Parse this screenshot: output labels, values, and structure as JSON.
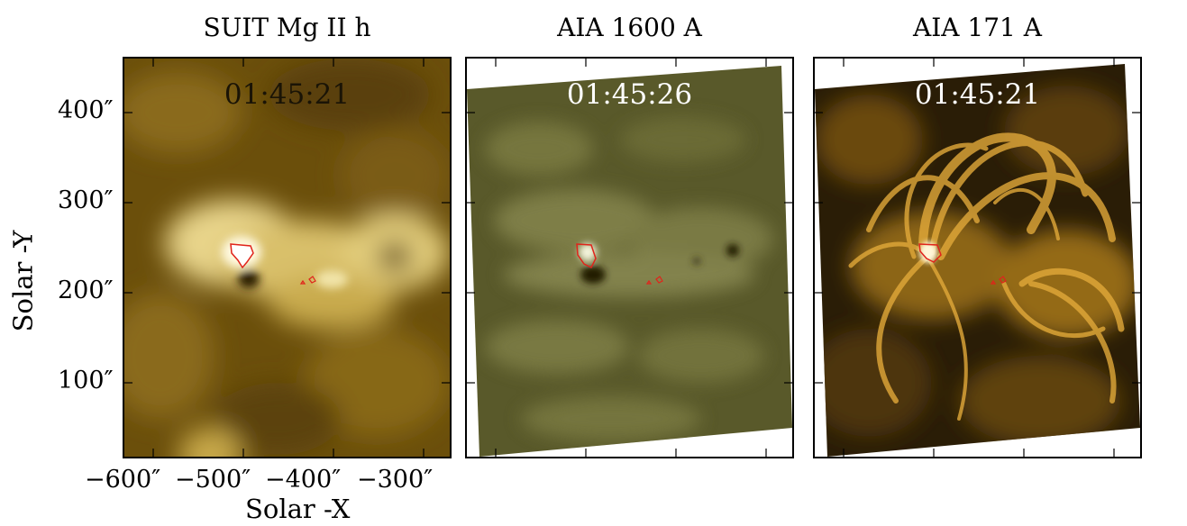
{
  "figure": {
    "panels": [
      {
        "title": "SUIT Mg II h",
        "time": "01:45:21",
        "colormap": "mg2-brown-gold",
        "time_color": "#1a1406"
      },
      {
        "title": "AIA 1600 A",
        "time": "01:45:26",
        "colormap": "aia1600-olive",
        "time_color": "#ffffff"
      },
      {
        "title": "AIA 171 A",
        "time": "01:45:21",
        "colormap": "aia171-gold",
        "time_color": "#ffffff"
      }
    ],
    "y_axis": {
      "label": "Solar -Y",
      "ticks": [
        "400″",
        "300″",
        "200″",
        "100″"
      ]
    },
    "x_axis": {
      "label": "Solar -X",
      "ticks": [
        "−600″",
        "−500″",
        "−400″",
        "−300″"
      ]
    },
    "contour_color": "#e0241b"
  }
}
